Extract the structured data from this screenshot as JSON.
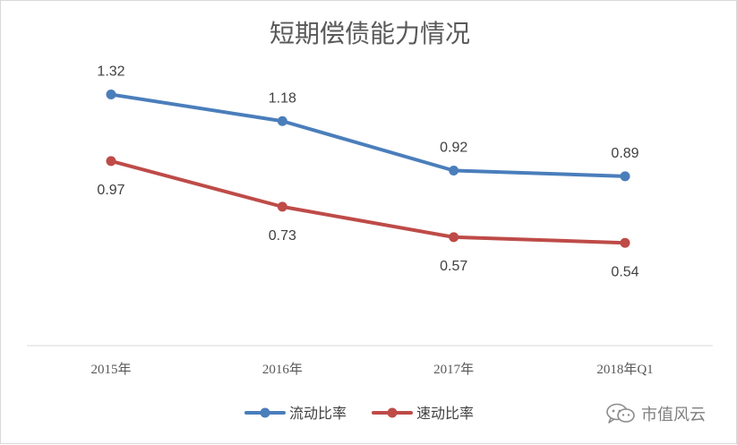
{
  "chart_data": {
    "type": "line",
    "title": "短期偿债能力情况",
    "categories": [
      "2015年",
      "2016年",
      "2017年",
      "2018年Q1"
    ],
    "series": [
      {
        "name": "流动比率",
        "values": [
          1.32,
          1.18,
          0.92,
          0.89
        ],
        "color": "#4a7ebb",
        "label_position": "above"
      },
      {
        "name": "速动比率",
        "values": [
          0.97,
          0.73,
          0.57,
          0.54
        ],
        "color": "#be4b48",
        "label_position": "below"
      }
    ],
    "ylim": [
      0,
      1.6
    ],
    "legend": "bottom",
    "grid": false
  },
  "watermark": {
    "text": "市值风云",
    "icon": "wechat-icon"
  }
}
